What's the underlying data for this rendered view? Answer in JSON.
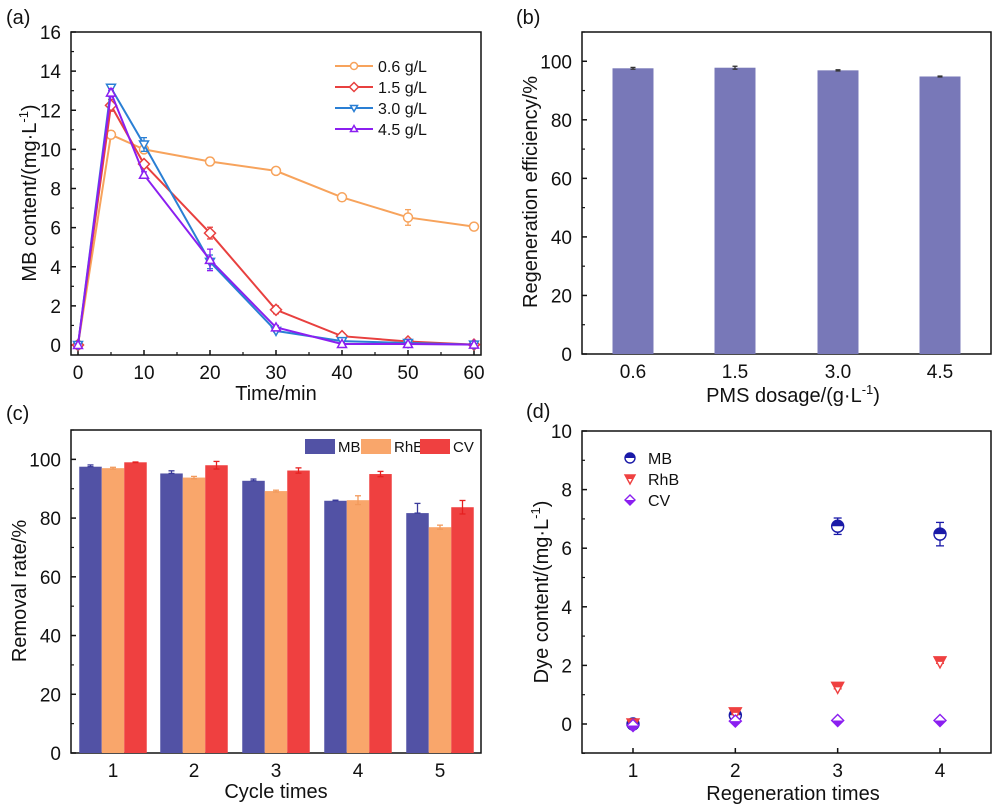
{
  "chart_data": [
    {
      "panel": "(a)",
      "type": "line",
      "xlabel": "Time/min",
      "ylabel": "MB content/(mg·L",
      "ylabel_sup": "-1",
      "ylabel_end": ")",
      "xlim": [
        -1,
        61
      ],
      "ylim": [
        -0.5,
        16
      ],
      "xticks": [
        0,
        10,
        20,
        30,
        40,
        50,
        60
      ],
      "yticks": [
        0,
        2,
        4,
        6,
        8,
        10,
        12,
        14,
        16
      ],
      "legend_position": "top-right",
      "x": [
        0,
        5,
        10,
        20,
        30,
        40,
        50,
        60
      ],
      "series": [
        {
          "name": "0.6 g/L",
          "color": "#f7a35c",
          "marker": "circle",
          "values": [
            0,
            10.75,
            10.0,
            9.38,
            8.9,
            7.55,
            6.52,
            6.05
          ],
          "errors": [
            0,
            0.2,
            0.1,
            0.2,
            0.05,
            0.1,
            0.4,
            0.15
          ]
        },
        {
          "name": "1.5 g/L",
          "color": "#e8403f",
          "marker": "diamond",
          "values": [
            0,
            12.25,
            9.25,
            5.72,
            1.8,
            0.45,
            0.18,
            0.02
          ],
          "errors": [
            0,
            0.3,
            0.15,
            0.3,
            0.2,
            0.05,
            0.05,
            0.02
          ]
        },
        {
          "name": "3.0 g/L",
          "color": "#2a7fd4",
          "marker": "triangle-down",
          "values": [
            0,
            13.15,
            10.25,
            4.25,
            0.72,
            0.2,
            0.1,
            0.02
          ],
          "errors": [
            0,
            0.15,
            0.35,
            0.35,
            0.05,
            0.05,
            0.05,
            0.02
          ]
        },
        {
          "name": "4.5 g/L",
          "color": "#8b1ff0",
          "marker": "triangle-up",
          "values": [
            0,
            12.9,
            8.7,
            4.35,
            0.9,
            0.05,
            0.05,
            0.02
          ],
          "errors": [
            0,
            0.2,
            0.15,
            0.55,
            0.1,
            0.05,
            0.05,
            0.02
          ]
        }
      ]
    },
    {
      "panel": "(b)",
      "type": "bar",
      "xlabel": "PMS dosage/(g·L",
      "xlabel_sup": "-1",
      "xlabel_end": ")",
      "ylabel": "Regeneration efficiency/%",
      "ylim": [
        0,
        110
      ],
      "yticks": [
        0,
        20,
        40,
        60,
        80,
        100
      ],
      "categories": [
        "0.6",
        "1.5",
        "3.0",
        "4.5"
      ],
      "color": "#7878b8",
      "values": [
        97.6,
        97.8,
        96.9,
        94.8
      ],
      "errors": [
        0.3,
        0.5,
        0.2,
        0.15
      ]
    },
    {
      "panel": "(c)",
      "type": "bar",
      "xlabel": "Cycle times",
      "ylabel": "Removal rate/%",
      "ylim": [
        0,
        110
      ],
      "yticks": [
        0,
        20,
        40,
        60,
        80,
        100
      ],
      "categories": [
        "1",
        "2",
        "3",
        "4",
        "5"
      ],
      "legend_position": "top-right",
      "series": [
        {
          "name": "MB",
          "color": "#5252a5",
          "values": [
            97.5,
            95.2,
            92.7,
            85.9,
            81.7
          ],
          "errors": [
            0.6,
            0.9,
            0.6,
            0.2,
            3.3
          ]
        },
        {
          "name": "RhB",
          "color": "#f9a66b",
          "values": [
            97.0,
            93.8,
            89.2,
            86.1,
            76.9
          ],
          "errors": [
            0.3,
            0.4,
            0.3,
            1.5,
            0.7
          ]
        },
        {
          "name": "CV",
          "color": "#ef4040",
          "values": [
            99.0,
            98.0,
            96.2,
            95.0,
            83.7
          ],
          "errors": [
            0.1,
            1.3,
            0.9,
            0.9,
            2.3
          ]
        }
      ]
    },
    {
      "panel": "(d)",
      "type": "scatter",
      "xlabel": "Regeneration times",
      "ylabel": "Dye content/(mg·L",
      "ylabel_sup": "-1",
      "ylabel_end": ")",
      "xlim": [
        0.5,
        4.5
      ],
      "ylim": [
        -1,
        10
      ],
      "xticks": [
        1,
        2,
        3,
        4
      ],
      "yticks": [
        0,
        2,
        4,
        6,
        8,
        10
      ],
      "legend_position": "top-left",
      "x": [
        1,
        2,
        3,
        4
      ],
      "series": [
        {
          "name": "MB",
          "color": "#1a1aa8",
          "marker": "half-circle",
          "values": [
            0,
            0.3,
            6.75,
            6.48
          ],
          "errors": [
            0,
            0.1,
            0.28,
            0.4
          ]
        },
        {
          "name": "RhB",
          "color": "#ef4040",
          "marker": "half-triangle-down",
          "values": [
            0,
            0.38,
            1.25,
            2.12
          ],
          "errors": [
            0,
            0.05,
            0.05,
            0.05
          ]
        },
        {
          "name": "CV",
          "color": "#8b1ff0",
          "marker": "half-diamond",
          "values": [
            -0.05,
            0.1,
            0.12,
            0.12
          ],
          "errors": [
            0,
            0,
            0,
            0
          ]
        }
      ]
    }
  ]
}
